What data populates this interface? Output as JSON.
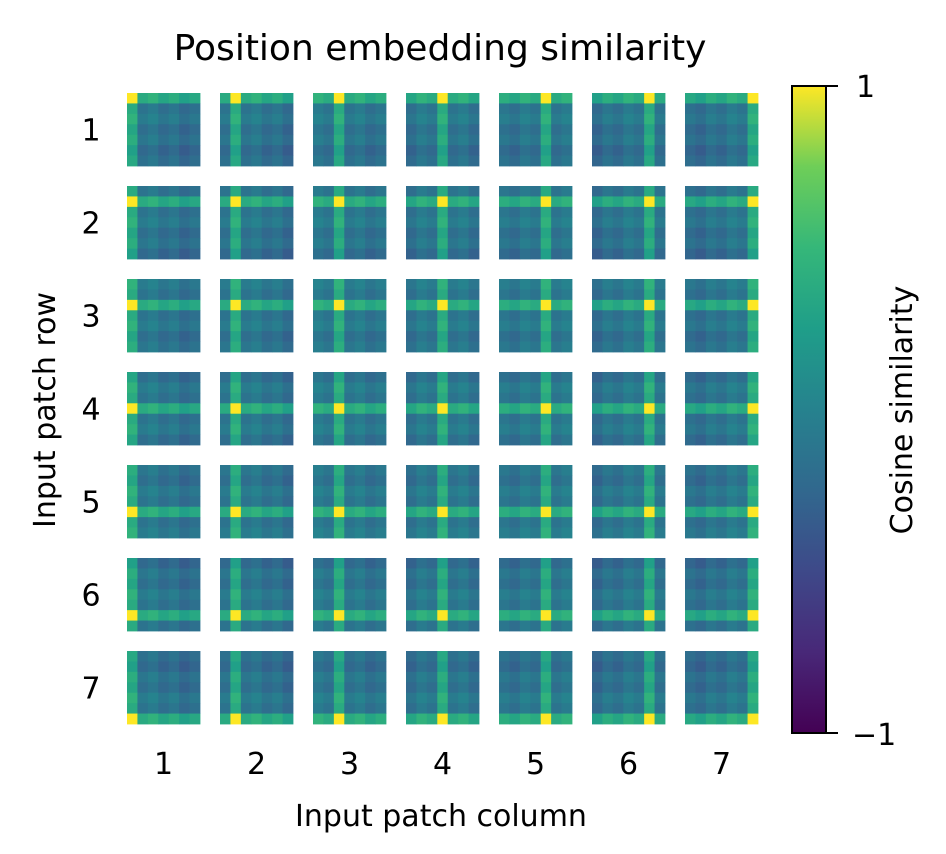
{
  "chart_data": {
    "type": "heatmap",
    "title": "Position embedding similarity",
    "xlabel": "Input patch column",
    "ylabel": "Input patch row",
    "row_labels": [
      "1",
      "2",
      "3",
      "4",
      "5",
      "6",
      "7"
    ],
    "column_labels": [
      "1",
      "2",
      "3",
      "4",
      "5",
      "6",
      "7"
    ],
    "grid_shape": [
      7,
      7
    ],
    "cell_resolution": 7,
    "value_range": [
      -1,
      1
    ],
    "colormap": "viridis",
    "colorbar": {
      "label": "Cosine similarity",
      "tick_labels": [
        "1",
        "−1"
      ],
      "ticks": [
        1,
        -1
      ]
    },
    "structure": "Each tile shows the cosine similarity between the position embedding of patch (row, column) and every patch in a 7x7 grid; peak value 1 at its own position, bright bands along its own row and column.",
    "self_similarity": 1
  }
}
